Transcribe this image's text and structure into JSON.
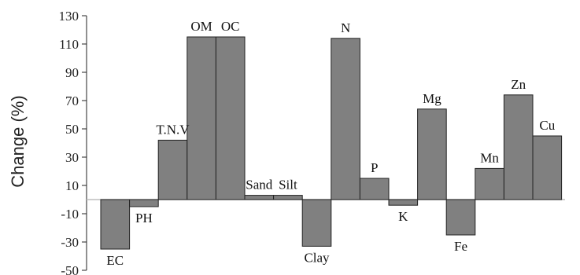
{
  "chart_data": {
    "type": "bar",
    "ylabel": "Change (%)",
    "ylim": [
      -50,
      130
    ],
    "yticks": [
      -50,
      -30,
      -10,
      10,
      30,
      50,
      70,
      90,
      110,
      130
    ],
    "categories": [
      "EC",
      "PH",
      "T.N.V",
      "OM",
      "OC",
      "Sand",
      "Silt",
      "Clay",
      "N",
      "P",
      "K",
      "Mg",
      "Fe",
      "Mn",
      "Zn",
      "Cu"
    ],
    "values": [
      -35,
      -5,
      42,
      115,
      115,
      3,
      3,
      -33,
      114,
      15,
      -4,
      64,
      -25,
      22,
      74,
      45
    ],
    "grid": false,
    "bar_color": "#808080",
    "baseline_color": "#bdbdbd"
  }
}
